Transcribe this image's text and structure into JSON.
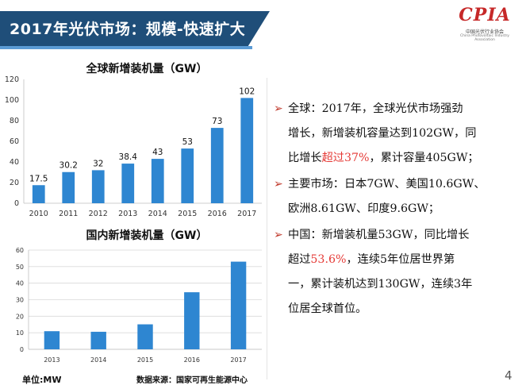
{
  "slide": {
    "title": "2017年光伏市场：规模-快速扩大",
    "page_number": "4",
    "logo": {
      "main": "CPIA",
      "sub": "中国光伏行业协会",
      "sub_en": "China Photovoltaic Industry Association"
    },
    "colors": {
      "title_bg": "#1f4e79",
      "accent": "#5b9bd5",
      "bar": "#2e86d1",
      "highlight": "#e53935",
      "arrow": "#c0392b"
    }
  },
  "chart_data": [
    {
      "type": "bar",
      "title": "全球新增装机量（GW）",
      "categories": [
        "2010",
        "2011",
        "2012",
        "2013",
        "2014",
        "2015",
        "2016",
        "2017"
      ],
      "values": [
        17.5,
        30.2,
        32,
        38.4,
        43,
        53,
        73,
        102
      ],
      "value_labels": [
        "17.5",
        "30.2",
        "32",
        "38.4",
        "43",
        "53",
        "73",
        "102"
      ],
      "ylim": [
        0,
        120
      ],
      "yticks": [
        0,
        20,
        40,
        60,
        80,
        100,
        120
      ],
      "grid": false,
      "data_labels": true
    },
    {
      "type": "bar",
      "title": "国内新增装机量（GW）",
      "categories": [
        "2013",
        "2014",
        "2015",
        "2016",
        "2017"
      ],
      "values": [
        10.95,
        10.6,
        15.1,
        34.5,
        53
      ],
      "ylim": [
        0,
        60
      ],
      "yticks": [
        0,
        10,
        20,
        30,
        40,
        50,
        60
      ],
      "grid": true,
      "data_labels": false
    }
  ],
  "footer": {
    "unit": "单位:MW",
    "source": "数据来源：国家可再生能源中心"
  },
  "bullets": [
    {
      "lines": [
        [
          {
            "t": "全球：2017年，全球光伏市场强劲"
          }
        ],
        [
          {
            "t": "增长，新增装机容量达到102GW，同"
          }
        ],
        [
          {
            "t": "比增长"
          },
          {
            "t": "超过37%",
            "hl": true
          },
          {
            "t": "，累计容量405GW；"
          }
        ]
      ]
    },
    {
      "lines": [
        [
          {
            "t": "主要市场：日本7GW、美国10.6GW、"
          }
        ],
        [
          {
            "t": "欧洲8.61GW、印度9.6GW；"
          }
        ]
      ]
    },
    {
      "lines": [
        [
          {
            "t": "中国：新增装机量53GW，同比增长"
          }
        ],
        [
          {
            "t": "超过"
          },
          {
            "t": "53.6%",
            "hl": true
          },
          {
            "t": "，连续5年位居世界第"
          }
        ],
        [
          {
            "t": "一，累计装机达到130GW，连续3年"
          }
        ],
        [
          {
            "t": "位居全球首位。"
          }
        ]
      ]
    }
  ]
}
